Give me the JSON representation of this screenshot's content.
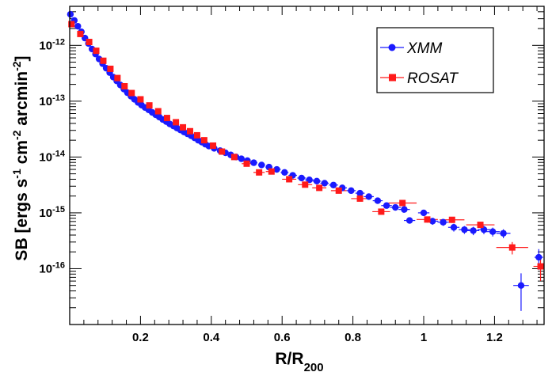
{
  "chart_data": {
    "type": "scatter",
    "xlabel": {
      "base": "R/R",
      "sub": "200"
    },
    "ylabel": {
      "parts": [
        {
          "t": "SB [ergs s"
        },
        {
          "t": "-1",
          "sup": true
        },
        {
          "t": " cm"
        },
        {
          "t": "-2",
          "sup": true
        },
        {
          "t": " arcmin"
        },
        {
          "t": "-2",
          "sup": true
        },
        {
          "t": "]"
        }
      ]
    },
    "xlim": [
      0,
      1.34
    ],
    "ylim": [
      1e-17,
      5e-12
    ],
    "yscale": "log",
    "grid": false,
    "legend": "top-right",
    "x_ticks": [
      {
        "v": 0.2,
        "label": "0.2"
      },
      {
        "v": 0.4,
        "label": "0.4"
      },
      {
        "v": 0.6,
        "label": "0.6"
      },
      {
        "v": 0.8,
        "label": "0.8"
      },
      {
        "v": 1.0,
        "label": "1"
      },
      {
        "v": 1.2,
        "label": "1.2"
      }
    ],
    "y_ticks": [
      {
        "v": 1e-16,
        "base": "10",
        "exp": "-16"
      },
      {
        "v": 1e-15,
        "base": "10",
        "exp": "-15"
      },
      {
        "v": 1e-14,
        "base": "10",
        "exp": "-14"
      },
      {
        "v": 1e-13,
        "base": "10",
        "exp": "-13"
      },
      {
        "v": 1e-12,
        "base": "10",
        "exp": "-12"
      }
    ],
    "series": [
      {
        "name": "XMM",
        "color": "#1a1aff",
        "marker": "circle",
        "points": [
          [
            0.002,
            3.6e-12,
            0.003,
            0
          ],
          [
            0.013,
            2.8e-12,
            0.004,
            0
          ],
          [
            0.023,
            2.2e-12,
            0.004,
            0
          ],
          [
            0.033,
            1.75e-12,
            0.004,
            0
          ],
          [
            0.043,
            1.35e-12,
            0.004,
            0
          ],
          [
            0.053,
            1.08e-12,
            0.004,
            0
          ],
          [
            0.063,
            8.6e-13,
            0.004,
            0
          ],
          [
            0.073,
            7e-13,
            0.004,
            0
          ],
          [
            0.083,
            5.7e-13,
            0.004,
            0
          ],
          [
            0.093,
            4.7e-13,
            0.004,
            0
          ],
          [
            0.103,
            3.9e-13,
            0.004,
            0
          ],
          [
            0.113,
            3.25e-13,
            0.004,
            0
          ],
          [
            0.123,
            2.7e-13,
            0.004,
            0
          ],
          [
            0.133,
            2.3e-13,
            0.004,
            0
          ],
          [
            0.143,
            1.95e-13,
            0.004,
            0
          ],
          [
            0.153,
            1.65e-13,
            0.004,
            0
          ],
          [
            0.163,
            1.42e-13,
            0.004,
            0
          ],
          [
            0.173,
            1.23e-13,
            0.004,
            0
          ],
          [
            0.183,
            1.08e-13,
            0.004,
            0
          ],
          [
            0.193,
            9.5e-14,
            0.004,
            0
          ],
          [
            0.203,
            8.5e-14,
            0.004,
            0
          ],
          [
            0.213,
            7.7e-14,
            0.004,
            0
          ],
          [
            0.223,
            7e-14,
            0.004,
            0
          ],
          [
            0.233,
            6.3e-14,
            0.004,
            0
          ],
          [
            0.243,
            5.7e-14,
            0.004,
            0
          ],
          [
            0.253,
            5.2e-14,
            0.004,
            0
          ],
          [
            0.263,
            4.7e-14,
            0.004,
            0
          ],
          [
            0.273,
            4.3e-14,
            0.004,
            0
          ],
          [
            0.283,
            3.9e-14,
            0.004,
            0
          ],
          [
            0.293,
            3.6e-14,
            0.004,
            0
          ],
          [
            0.303,
            3.3e-14,
            0.004,
            0
          ],
          [
            0.313,
            3.05e-14,
            0.004,
            0
          ],
          [
            0.323,
            2.8e-14,
            0.004,
            0
          ],
          [
            0.333,
            2.6e-14,
            0.004,
            0
          ],
          [
            0.343,
            2.4e-14,
            0.004,
            0
          ],
          [
            0.353,
            2.2e-14,
            0.004,
            0
          ],
          [
            0.363,
            2e-14,
            0.004,
            0
          ],
          [
            0.373,
            1.85e-14,
            0.004,
            0
          ],
          [
            0.383,
            1.7e-14,
            0.004,
            0
          ],
          [
            0.393,
            1.57e-14,
            0.005,
            0
          ],
          [
            0.408,
            1.43e-14,
            0.007,
            0
          ],
          [
            0.425,
            1.3e-14,
            0.008,
            0
          ],
          [
            0.44,
            1.19e-14,
            0.008,
            0
          ],
          [
            0.455,
            1.09e-14,
            0.008,
            0
          ],
          [
            0.47,
            1e-14,
            0.008,
            0
          ],
          [
            0.485,
            9.3e-15,
            0.008,
            0
          ],
          [
            0.502,
            8.6e-15,
            0.008,
            0
          ],
          [
            0.52,
            7.9e-15,
            0.01,
            0
          ],
          [
            0.542,
            7.2e-15,
            0.01,
            0
          ],
          [
            0.563,
            6.6e-15,
            0.01,
            0
          ],
          [
            0.585,
            6e-15,
            0.011,
            0
          ],
          [
            0.607,
            5.3e-15,
            0.011,
            0
          ],
          [
            0.63,
            4.7e-15,
            0.012,
            0
          ],
          [
            0.655,
            4.2e-15,
            0.012,
            0
          ],
          [
            0.677,
            3.9e-15,
            0.012,
            0
          ],
          [
            0.698,
            3.7e-15,
            0.012,
            0
          ],
          [
            0.72,
            3.4e-15,
            0.012,
            0
          ],
          [
            0.745,
            3.15e-15,
            0.013,
            0
          ],
          [
            0.77,
            2.8e-15,
            0.013,
            0
          ],
          [
            0.795,
            2.5e-15,
            0.013,
            0
          ],
          [
            0.82,
            2.25e-15,
            0.013,
            0
          ],
          [
            0.845,
            1.95e-15,
            0.014,
            0
          ],
          [
            0.87,
            1.65e-15,
            0.014,
            0
          ],
          [
            0.895,
            1.35e-15,
            0.015,
            0
          ],
          [
            0.92,
            1.25e-15,
            0.015,
            0
          ],
          [
            0.945,
            1.15e-15,
            0.016,
            0
          ],
          [
            1.0,
            1e-15,
            0.016,
            0
          ],
          [
            0.96,
            7.3e-16,
            0.016,
            0.12
          ],
          [
            1.025,
            7.1e-16,
            0.016,
            0.14
          ],
          [
            1.055,
            6.8e-16,
            0.016,
            0.14
          ],
          [
            1.085,
            5.5e-16,
            0.016,
            0.16
          ],
          [
            1.115,
            5e-16,
            0.016,
            0.16
          ],
          [
            1.14,
            4.8e-16,
            0.017,
            0.17
          ],
          [
            1.17,
            5e-16,
            0.018,
            0.17
          ],
          [
            1.195,
            4.6e-16,
            0.02,
            0.18
          ],
          [
            1.225,
            4.3e-16,
            0.02,
            0.18
          ],
          [
            1.275,
            5e-17,
            0.022,
            0.65
          ],
          [
            1.325,
            1.6e-16,
            0.012,
            0.4
          ]
        ]
      },
      {
        "name": "ROSAT",
        "color": "#ff1a1a",
        "marker": "square",
        "points": [
          [
            0.005,
            2.4e-12,
            0.005,
            0
          ],
          [
            0.03,
            1.6e-12,
            0.005,
            0
          ],
          [
            0.055,
            1.15e-12,
            0.005,
            0
          ],
          [
            0.075,
            8e-13,
            0.005,
            0
          ],
          [
            0.095,
            5.3e-13,
            0.005,
            0
          ],
          [
            0.115,
            3.8e-13,
            0.005,
            0
          ],
          [
            0.135,
            2.6e-13,
            0.005,
            0
          ],
          [
            0.155,
            1.85e-13,
            0.005,
            0
          ],
          [
            0.175,
            1.4e-13,
            0.005,
            0
          ],
          [
            0.2,
            1.08e-13,
            0.005,
            0
          ],
          [
            0.225,
            8.4e-14,
            0.005,
            0
          ],
          [
            0.25,
            6.6e-14,
            0.005,
            0
          ],
          [
            0.275,
            5e-14,
            0.005,
            0
          ],
          [
            0.3,
            4.2e-14,
            0.005,
            0
          ],
          [
            0.32,
            3.4e-14,
            0.006,
            0
          ],
          [
            0.34,
            2.9e-14,
            0.006,
            0
          ],
          [
            0.36,
            2.45e-14,
            0.006,
            0
          ],
          [
            0.38,
            2e-14,
            0.006,
            0
          ],
          [
            0.405,
            1.6e-14,
            0.008,
            0
          ],
          [
            0.43,
            1.25e-14,
            0.01,
            0
          ],
          [
            0.465,
            1e-14,
            0.012,
            0
          ],
          [
            0.5,
            7.6e-15,
            0.014,
            0
          ],
          [
            0.535,
            5.3e-15,
            0.016,
            0
          ],
          [
            0.57,
            5.5e-15,
            0.016,
            0
          ],
          [
            0.62,
            4e-15,
            0.02,
            0
          ],
          [
            0.665,
            3.2e-15,
            0.02,
            0
          ],
          [
            0.705,
            2.8e-15,
            0.02,
            0
          ],
          [
            0.76,
            2.5e-15,
            0.022,
            0
          ],
          [
            0.82,
            1.8e-15,
            0.025,
            0
          ],
          [
            0.88,
            1.05e-15,
            0.025,
            0
          ],
          [
            0.94,
            1.5e-15,
            0.04,
            0
          ],
          [
            1.01,
            7.6e-16,
            0.03,
            0.12
          ],
          [
            1.08,
            7.5e-16,
            0.035,
            0.12
          ],
          [
            1.16,
            6.1e-16,
            0.04,
            0.13
          ],
          [
            1.25,
            2.4e-16,
            0.045,
            0.25
          ],
          [
            1.33,
            1.1e-16,
            0.02,
            0.45
          ]
        ]
      }
    ]
  }
}
